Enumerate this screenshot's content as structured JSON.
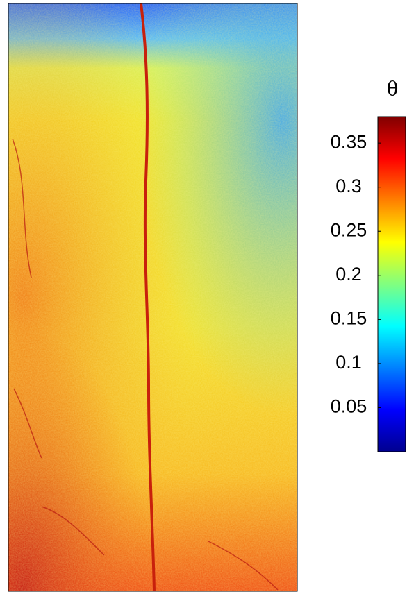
{
  "chart_data": {
    "type": "heatmap",
    "colorbar": {
      "label": "θ",
      "clim": [
        0,
        0.38
      ],
      "ticks": [
        0.05,
        0.1,
        0.15,
        0.2,
        0.25,
        0.3,
        0.35
      ],
      "colormap": "jet"
    }
  }
}
